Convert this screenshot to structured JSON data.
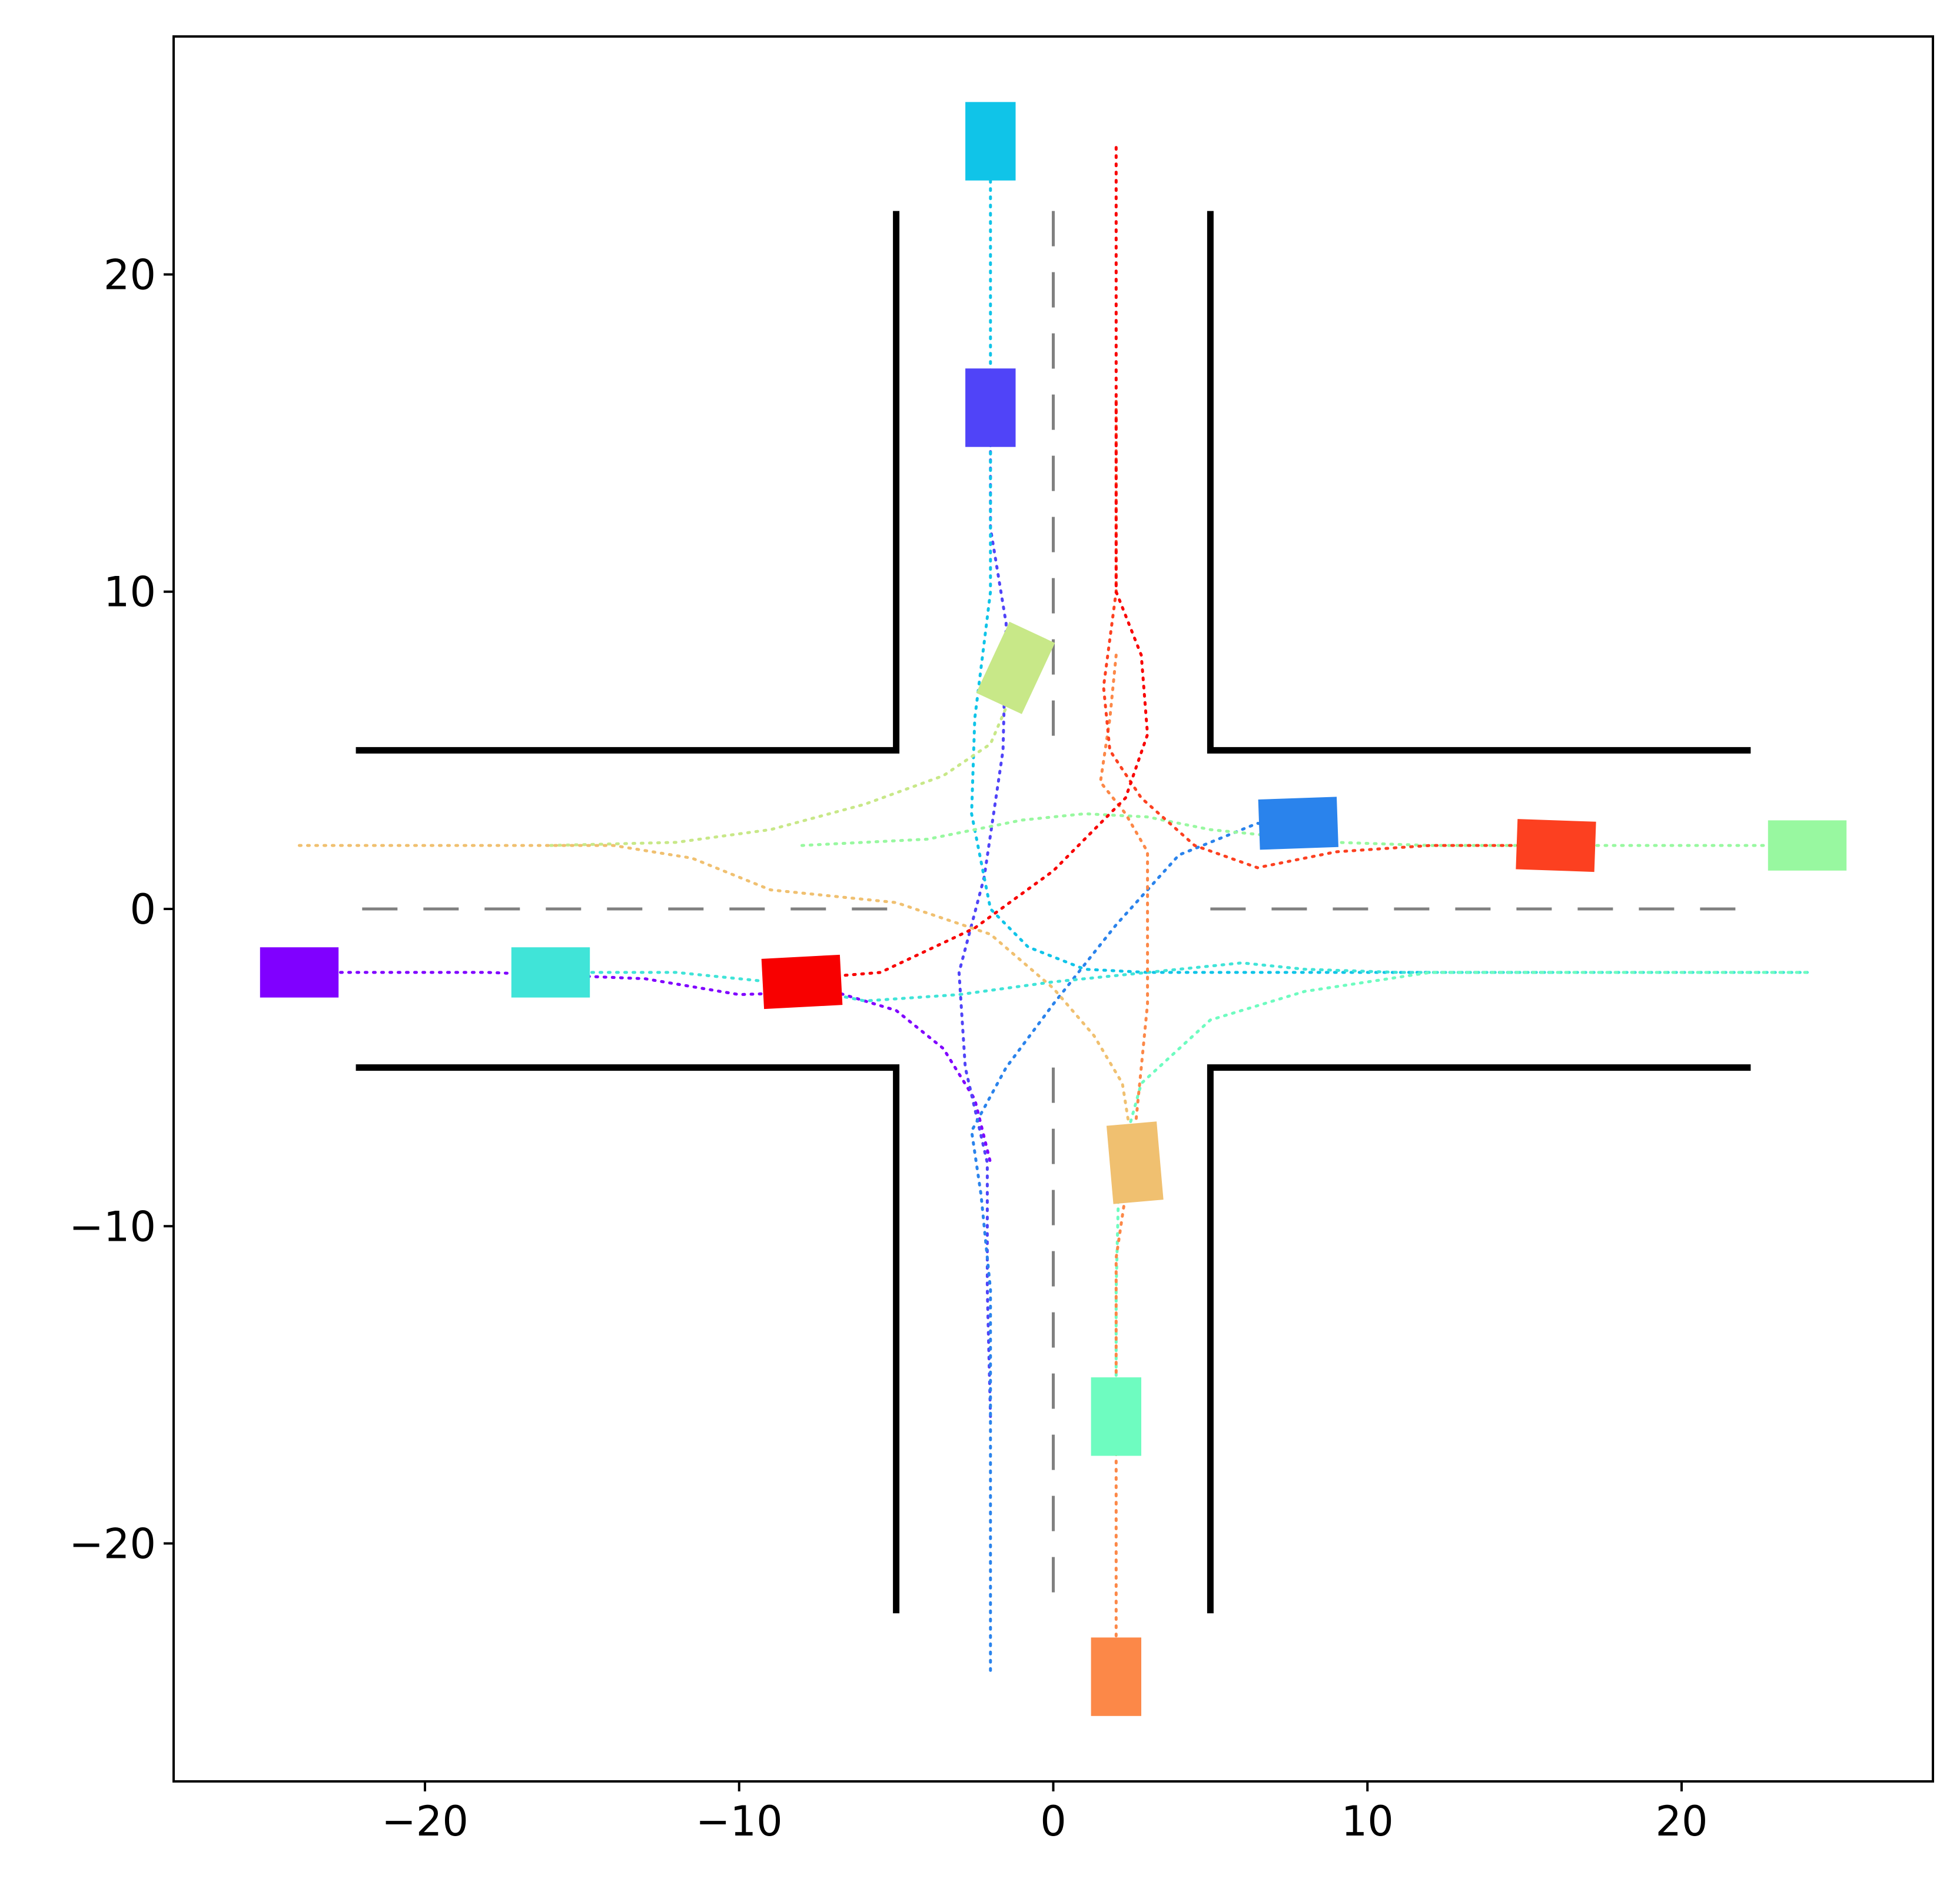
{
  "chart_data": {
    "type": "scatter",
    "title": "",
    "xlabel": "",
    "ylabel": "",
    "xlim": [
      -28,
      28
    ],
    "ylim": [
      -27.5,
      27.5
    ],
    "x_ticks": [
      -20,
      -10,
      0,
      10,
      20
    ],
    "y_ticks": [
      -20,
      -10,
      0,
      10,
      20
    ],
    "x_tick_labels": [
      "−20",
      "−10",
      "0",
      "10",
      "20"
    ],
    "y_tick_labels": [
      "−20",
      "−10",
      "0",
      "10",
      "20"
    ],
    "grid": false,
    "legend": "none",
    "road_edges": [
      [
        [
          -5,
          22
        ],
        [
          -5,
          5
        ],
        [
          -22.2,
          5
        ]
      ],
      [
        [
          5,
          22
        ],
        [
          5,
          5
        ],
        [
          22.2,
          5
        ]
      ],
      [
        [
          -22.2,
          -5
        ],
        [
          -5,
          -5
        ],
        [
          -5,
          -22.2
        ]
      ],
      [
        [
          22.2,
          -5
        ],
        [
          5,
          -5
        ],
        [
          5,
          -22.2
        ]
      ]
    ],
    "lane_center_lines": [
      [
        [
          -22,
          0
        ],
        [
          -5,
          0
        ]
      ],
      [
        [
          5,
          0
        ],
        [
          22,
          0
        ]
      ],
      [
        [
          0,
          22
        ],
        [
          0,
          5
        ]
      ],
      [
        [
          0,
          -5
        ],
        [
          0,
          -22
        ]
      ]
    ],
    "road_edge_color": "#000000",
    "lane_line_color": "#808080",
    "series": [
      {
        "color": "#8000ff",
        "trajectory": [
          [
            -24,
            -2
          ],
          [
            -18,
            -2
          ],
          [
            -13,
            -2.2
          ],
          [
            -10,
            -2.7
          ],
          [
            -7,
            -2.6
          ],
          [
            -5,
            -3.2
          ],
          [
            -3.5,
            -4.4
          ],
          [
            -2.5,
            -6
          ],
          [
            -2,
            -8
          ]
        ],
        "vehicle": {
          "x": -24,
          "y": -2,
          "heading": 0
        }
      },
      {
        "color": "#5044f8",
        "trajectory": [
          [
            -2,
            -16
          ],
          [
            -2.1,
            -12
          ],
          [
            -2.1,
            -8
          ],
          [
            -2.8,
            -5
          ],
          [
            -3,
            -2
          ],
          [
            -2.2,
            1
          ],
          [
            -1.6,
            5
          ],
          [
            -1.5,
            9
          ],
          [
            -2,
            12
          ],
          [
            -2,
            16
          ]
        ],
        "vehicle": {
          "x": -2,
          "y": 15.8,
          "heading": 90
        }
      },
      {
        "color": "#2a83ec",
        "trajectory": [
          [
            -2,
            -24
          ],
          [
            -2,
            -18
          ],
          [
            -2,
            -12
          ],
          [
            -2.3,
            -9
          ],
          [
            -2.6,
            -7
          ],
          [
            -1.5,
            -5
          ],
          [
            0,
            -3
          ],
          [
            2,
            -0.5
          ],
          [
            4,
            1.7
          ],
          [
            6.5,
            2.7
          ],
          [
            8,
            2.5
          ]
        ],
        "vehicle": {
          "x": 7.8,
          "y": 2.7,
          "heading": 2
        }
      },
      {
        "color": "#10c4e8",
        "trajectory": [
          [
            -2,
            24
          ],
          [
            -2,
            18
          ],
          [
            -2,
            14
          ],
          [
            -2,
            10
          ],
          [
            -2.5,
            6
          ],
          [
            -2.6,
            3
          ],
          [
            -2,
            0
          ],
          [
            -0.8,
            -1.2
          ],
          [
            1,
            -1.9
          ],
          [
            3,
            -2
          ],
          [
            6,
            -2
          ],
          [
            10,
            -2
          ],
          [
            16,
            -2
          ]
        ],
        "vehicle": {
          "x": -2,
          "y": 24.2,
          "heading": 90
        }
      },
      {
        "color": "#40e4d8",
        "trajectory": [
          [
            -16,
            -2
          ],
          [
            -12,
            -2
          ],
          [
            -9,
            -2.3
          ],
          [
            -6,
            -2.9
          ],
          [
            -3,
            -2.7
          ],
          [
            0,
            -2.3
          ],
          [
            3,
            -2
          ],
          [
            6,
            -1.7
          ],
          [
            8,
            -1.9
          ],
          [
            11,
            -2
          ],
          [
            16,
            -2
          ],
          [
            24,
            -2
          ]
        ],
        "vehicle": {
          "x": -16,
          "y": -2,
          "heading": 0
        }
      },
      {
        "color": "#6efcc0",
        "trajectory": [
          [
            2,
            -16
          ],
          [
            2,
            -12
          ],
          [
            2.1,
            -8
          ],
          [
            2.8,
            -5.5
          ],
          [
            5,
            -3.5
          ],
          [
            8,
            -2.6
          ],
          [
            12,
            -2
          ],
          [
            16,
            -2
          ],
          [
            20,
            -2
          ],
          [
            24,
            -2
          ]
        ],
        "vehicle": {
          "x": 2,
          "y": -16,
          "heading": 90
        }
      },
      {
        "color": "#98f8a0",
        "trajectory": [
          [
            -8,
            2
          ],
          [
            -4,
            2.2
          ],
          [
            -1,
            2.8
          ],
          [
            1,
            3
          ],
          [
            3,
            2.9
          ],
          [
            5,
            2.5
          ],
          [
            7,
            2.3
          ],
          [
            9,
            2.1
          ],
          [
            12,
            2
          ],
          [
            17,
            2
          ],
          [
            24,
            2
          ]
        ],
        "vehicle": {
          "x": 24,
          "y": 2,
          "heading": 0
        }
      },
      {
        "color": "#c8e888",
        "trajectory": [
          [
            -16,
            2
          ],
          [
            -12,
            2.1
          ],
          [
            -9,
            2.5
          ],
          [
            -6,
            3.3
          ],
          [
            -3.5,
            4.2
          ],
          [
            -2,
            5.2
          ],
          [
            -1,
            7.5
          ]
        ],
        "vehicle": {
          "x": -1.2,
          "y": 7.6,
          "heading": 65
        }
      },
      {
        "color": "#f0c070",
        "trajectory": [
          [
            -24,
            2
          ],
          [
            -18,
            2
          ],
          [
            -14,
            2
          ],
          [
            -11.5,
            1.6
          ],
          [
            -9,
            0.6
          ],
          [
            -5,
            0.2
          ],
          [
            -2,
            -0.8
          ],
          [
            0,
            -2.5
          ],
          [
            1.3,
            -4
          ],
          [
            2.2,
            -5.5
          ],
          [
            2.6,
            -8
          ]
        ],
        "vehicle": {
          "x": 2.6,
          "y": -8,
          "heading": 95
        }
      },
      {
        "color": "#fc8848",
        "trajectory": [
          [
            2,
            8
          ],
          [
            1.8,
            6
          ],
          [
            1.5,
            4
          ],
          [
            2.3,
            3
          ],
          [
            3,
            1.8
          ],
          [
            3,
            0
          ],
          [
            3,
            -3
          ],
          [
            2.6,
            -7
          ],
          [
            2,
            -11
          ],
          [
            2,
            -16
          ],
          [
            2,
            -22
          ],
          [
            2,
            -24
          ]
        ],
        "vehicle": {
          "x": 2,
          "y": -24.2,
          "heading": 90
        }
      },
      {
        "color": "#fc4020",
        "trajectory": [
          [
            2,
            16
          ],
          [
            2,
            12
          ],
          [
            2,
            10
          ],
          [
            1.6,
            7
          ],
          [
            1.8,
            5
          ],
          [
            2.8,
            3.5
          ],
          [
            4.5,
            2
          ],
          [
            6.5,
            1.3
          ],
          [
            9,
            1.8
          ],
          [
            12,
            2
          ],
          [
            16,
            2
          ]
        ],
        "vehicle": {
          "x": 16,
          "y": 2,
          "heading": -2
        }
      },
      {
        "color": "#f80000",
        "trajectory": [
          [
            2,
            24
          ],
          [
            2,
            18
          ],
          [
            2,
            14
          ],
          [
            2,
            10
          ],
          [
            2.8,
            8
          ],
          [
            3,
            5.5
          ],
          [
            2.3,
            3.5
          ],
          [
            0,
            1.2
          ],
          [
            -2.5,
            -0.6
          ],
          [
            -5.5,
            -2
          ],
          [
            -8,
            -2.2
          ]
        ],
        "vehicle": {
          "x": -8,
          "y": -2.3,
          "heading": 3
        }
      }
    ]
  }
}
